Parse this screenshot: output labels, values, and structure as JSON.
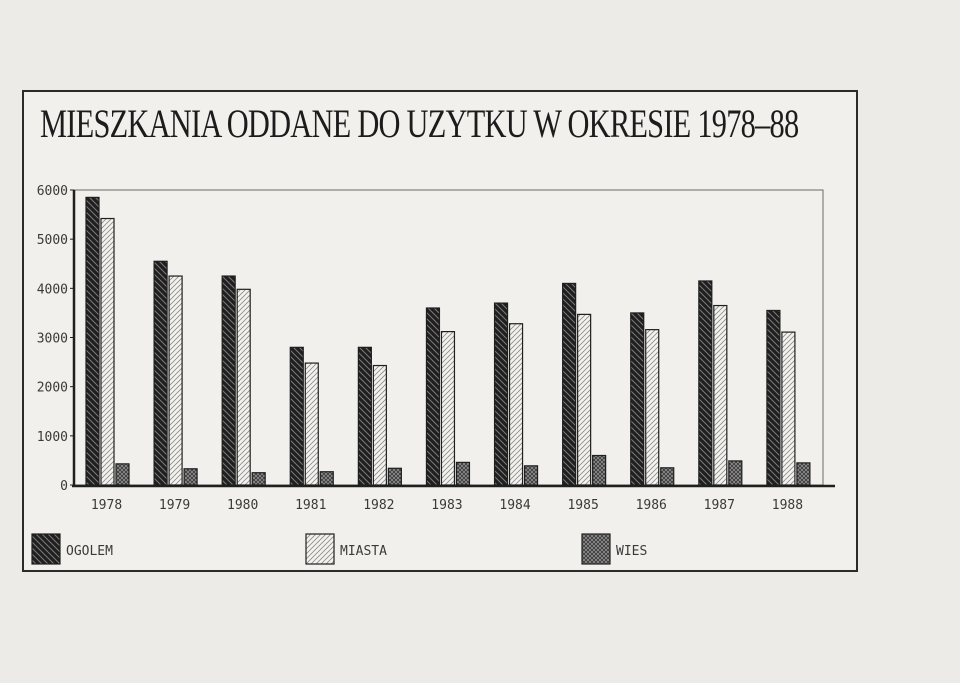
{
  "chart_data": {
    "type": "bar",
    "title": "MIESZKANIA ODDANE DO UZYTKU W OKRESIE 1978–88",
    "xlabel": "",
    "ylabel": "",
    "categories": [
      "1978",
      "1979",
      "1980",
      "1981",
      "1982",
      "1983",
      "1984",
      "1985",
      "1986",
      "1987",
      "1988"
    ],
    "series": [
      {
        "name": "OGOLEM",
        "values": [
          5850,
          4550,
          4250,
          2800,
          2800,
          3600,
          3700,
          4100,
          3500,
          4150,
          3550
        ]
      },
      {
        "name": "MIASTA",
        "values": [
          5420,
          4250,
          3980,
          2480,
          2430,
          3120,
          3280,
          3470,
          3160,
          3650,
          3110
        ]
      },
      {
        "name": "WIES",
        "values": [
          430,
          330,
          250,
          270,
          340,
          460,
          390,
          600,
          350,
          490,
          450
        ]
      }
    ],
    "y_ticks": [
      "0",
      "1000",
      "2000",
      "3000",
      "4000",
      "5000",
      "6000"
    ],
    "ylim": [
      0,
      6000
    ],
    "grid": false,
    "legend_position": "bottom",
    "colors": {
      "ink": "#1f1f1f",
      "paper": "#f1f0ec",
      "frame": "#2b2b2b"
    }
  }
}
